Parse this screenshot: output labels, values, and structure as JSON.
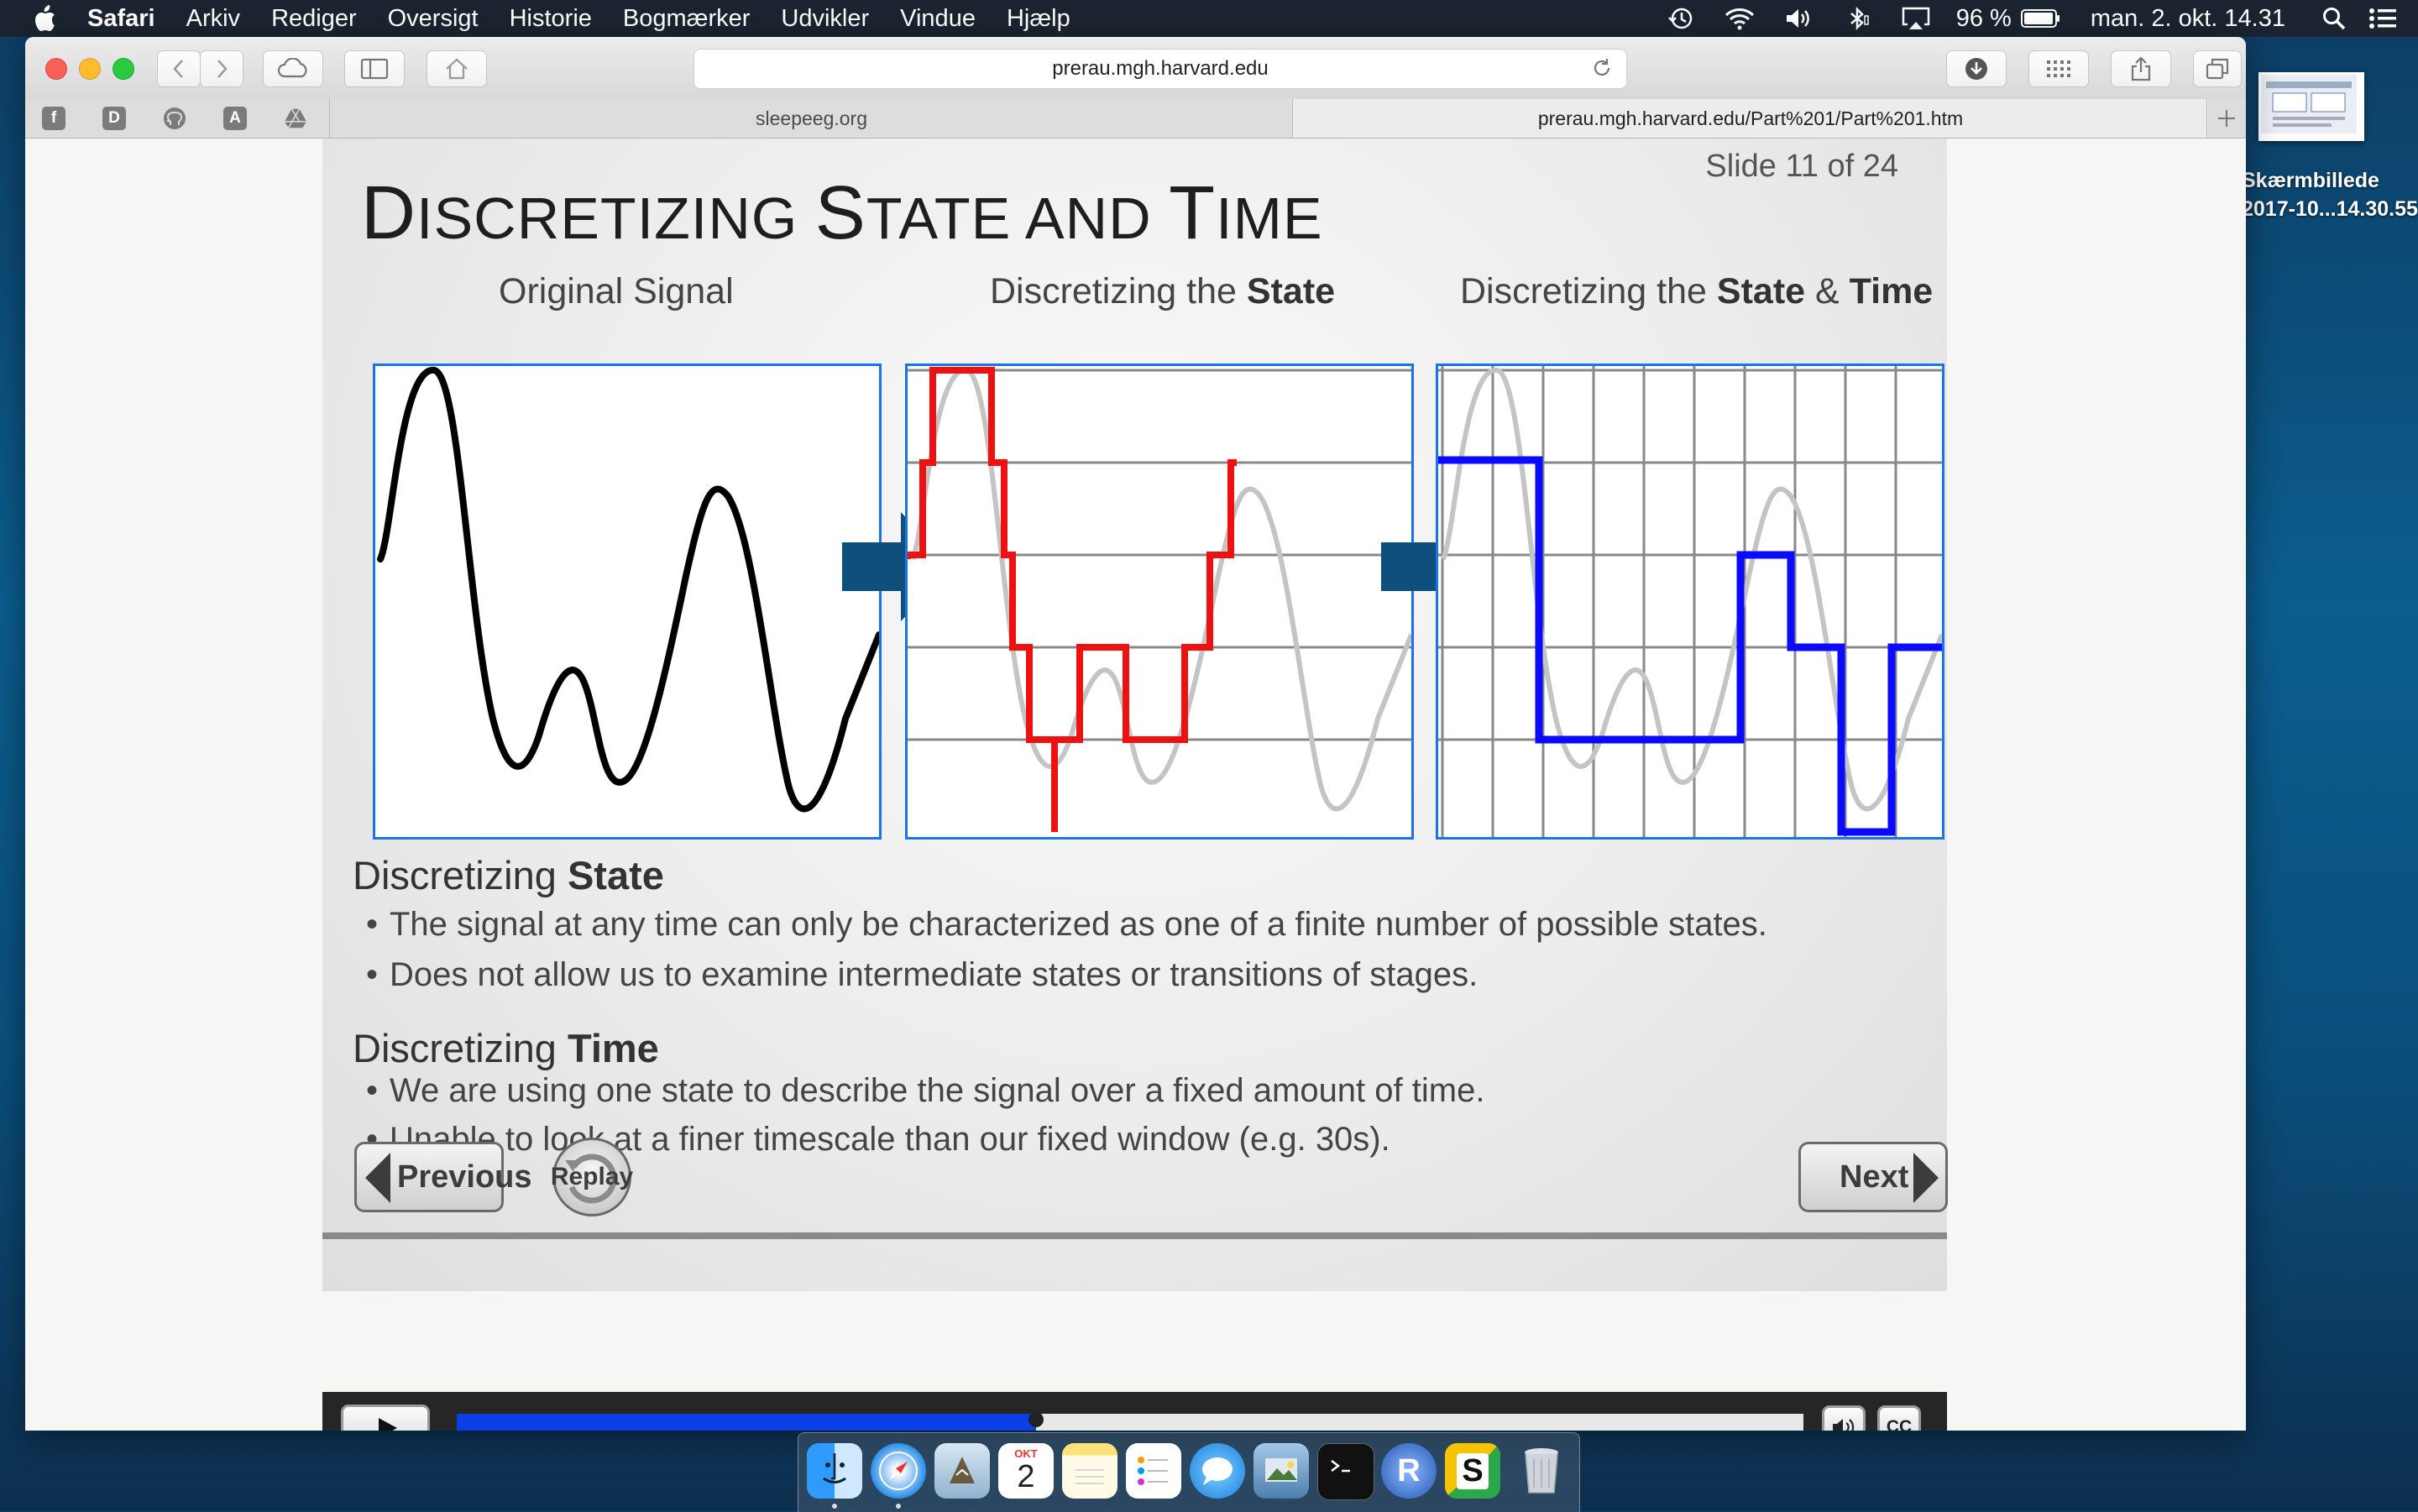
{
  "menubar": {
    "items": [
      "Safari",
      "Arkiv",
      "Rediger",
      "Oversigt",
      "Historie",
      "Bogmærker",
      "Udvikler",
      "Vindue",
      "Hjælp"
    ],
    "battery": "96 %",
    "datetime": "man. 2. okt. 14.31"
  },
  "browser": {
    "url": "prerau.mgh.harvard.edu",
    "tabs": [
      "sleepeeg.org",
      "prerau.mgh.harvard.edu/Part%201/Part%201.htm"
    ],
    "favorites": [
      "f",
      "D",
      "A"
    ]
  },
  "slide": {
    "number": "Slide 11 of 24",
    "title_parts": [
      "D",
      "ISCRETIZING ",
      "S",
      "TATE AND ",
      "T",
      "IME"
    ],
    "captions": {
      "original": "Original Signal",
      "state_prefix": "Discretizing the ",
      "state_bold": "State",
      "statetime_prefix": "Discretizing the ",
      "statetime_bold1": "State",
      "statetime_mid": " & ",
      "statetime_bold2": "Time"
    },
    "sections": {
      "state_prefix": "Discretizing ",
      "state_bold": "State",
      "state_bullets": [
        "The signal at any time can only be characterized as one of a finite number of possible states.",
        "Does not allow us to examine intermediate states or transitions of stages."
      ],
      "time_prefix": "Discretizing ",
      "time_bold": "Time",
      "time_bullets": [
        "We are using one state to describe the signal over a fixed amount of time.",
        "Unable to look at a finer timescale than our fixed window (e.g. 30s)."
      ]
    },
    "buttons": {
      "previous": "Previous",
      "replay": "Replay",
      "next": "Next"
    }
  },
  "player": {
    "progress": 0.43,
    "cc_label": "CC"
  },
  "desktop": {
    "file_label_line1": "Skærmbillede",
    "file_label_line2": "2017-10...14.30.55"
  },
  "dock": {
    "calendar_month": "OKT",
    "calendar_day": "2",
    "r_label": "R",
    "s_label": "S"
  },
  "colors": {
    "accent_blue": "#1a73e8",
    "state_red": "#ee1111",
    "time_blue": "#0a0aff",
    "arrow": "#0e4f7c",
    "progress": "#0c3fe6"
  }
}
